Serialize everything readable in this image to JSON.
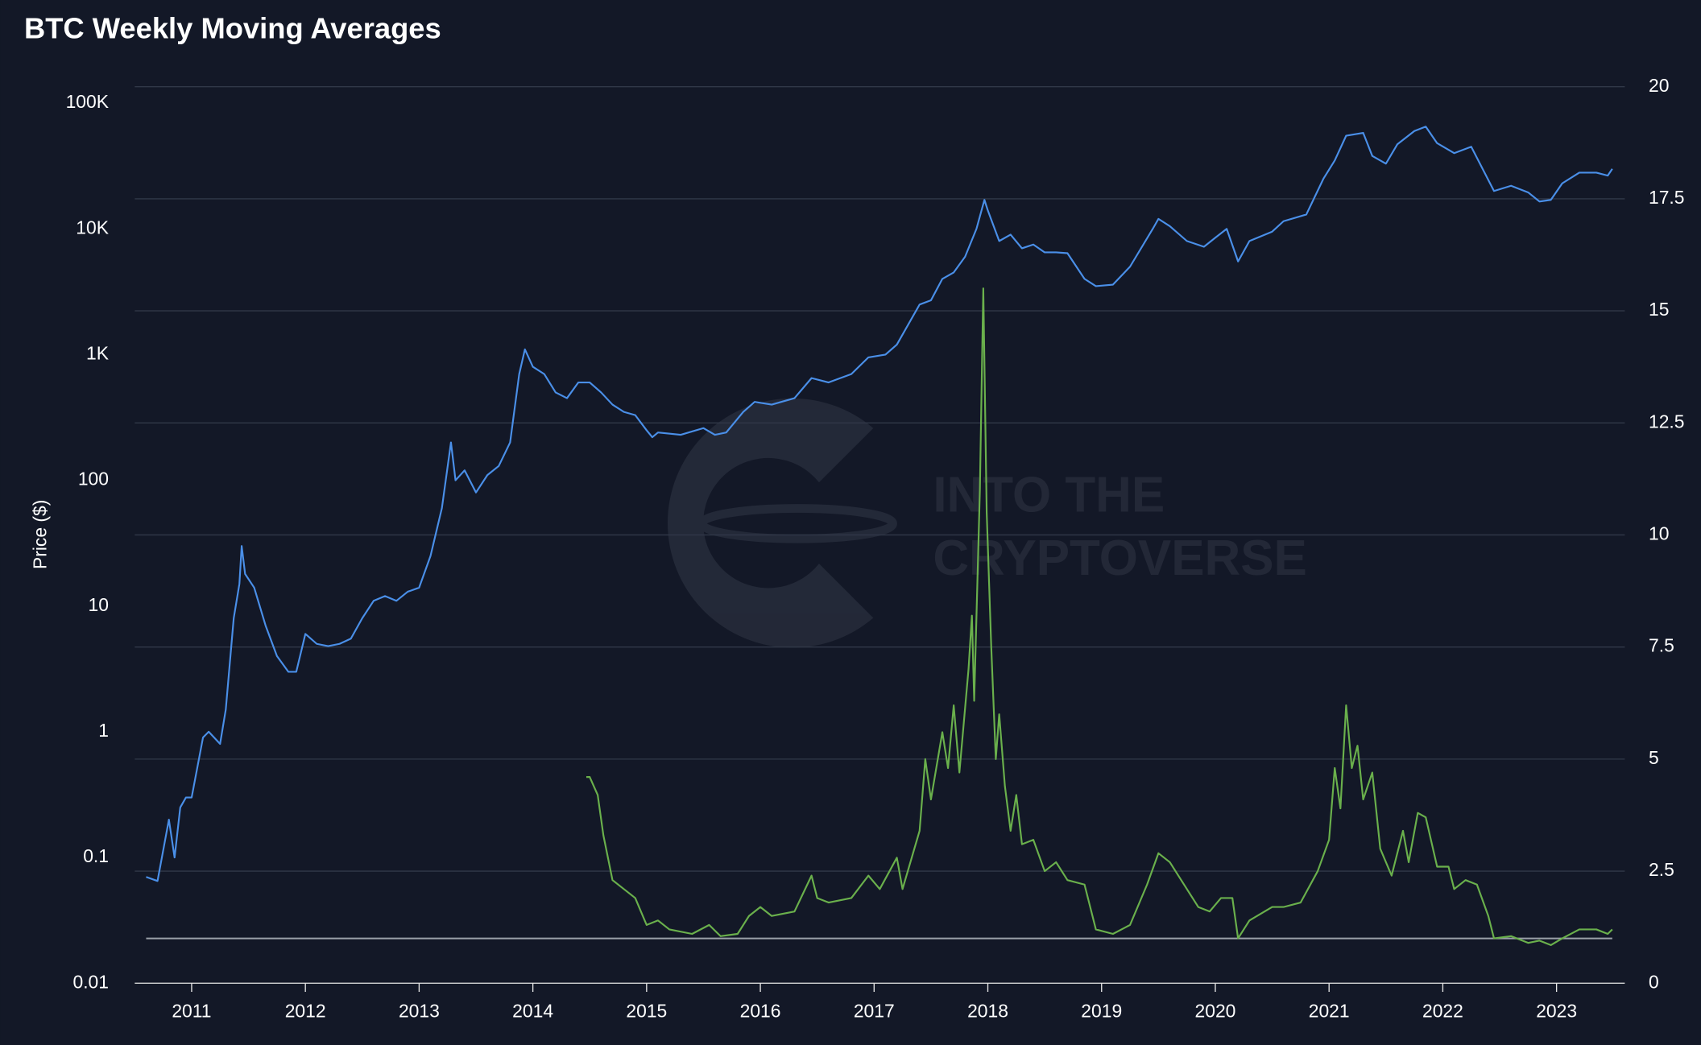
{
  "chart_data": {
    "type": "line",
    "title": "BTC Weekly Moving Averages",
    "ylabel": "Price ($)",
    "watermark": [
      "INTO THE",
      "CRYPTOVERSE"
    ],
    "ylog": true,
    "ylim": [
      0.01,
      135000
    ],
    "yticks": [
      0.01,
      0.1,
      1,
      10,
      100,
      {
        "value": 1000,
        "label": "1K"
      },
      {
        "value": 10000,
        "label": "10K"
      },
      {
        "value": 100000,
        "label": "100K"
      }
    ],
    "y2lim": [
      0,
      20
    ],
    "y2ticks": [
      0,
      2.5,
      5,
      7.5,
      10,
      12.5,
      15,
      17.5,
      20
    ],
    "grid_axis": "y2",
    "xlim": [
      2010.5,
      2023.6
    ],
    "xticks": [
      2011,
      2012,
      2013,
      2014,
      2015,
      2016,
      2017,
      2018,
      2019,
      2020,
      2021,
      2022,
      2023
    ],
    "hlines": [
      {
        "value": 1,
        "axis": "y2",
        "color": "#9aa0a8"
      }
    ],
    "series": [
      {
        "color": "#4a8fe8",
        "axis": "y",
        "x": [
          2010.6,
          2010.7,
          2010.8,
          2010.85,
          2010.9,
          2010.95,
          2011.0,
          2011.1,
          2011.15,
          2011.25,
          2011.3,
          2011.37,
          2011.42,
          2011.44,
          2011.47,
          2011.55,
          2011.65,
          2011.75,
          2011.85,
          2011.92,
          2012.0,
          2012.1,
          2012.2,
          2012.3,
          2012.4,
          2012.5,
          2012.6,
          2012.7,
          2012.8,
          2012.9,
          2013.0,
          2013.1,
          2013.2,
          2013.28,
          2013.32,
          2013.4,
          2013.5,
          2013.6,
          2013.7,
          2013.8,
          2013.88,
          2013.93,
          2014.0,
          2014.1,
          2014.2,
          2014.3,
          2014.4,
          2014.5,
          2014.6,
          2014.7,
          2014.8,
          2014.9,
          2015.0,
          2015.05,
          2015.1,
          2015.3,
          2015.5,
          2015.6,
          2015.7,
          2015.85,
          2015.95,
          2016.1,
          2016.3,
          2016.45,
          2016.6,
          2016.8,
          2016.95,
          2017.1,
          2017.2,
          2017.4,
          2017.5,
          2017.6,
          2017.7,
          2017.8,
          2017.9,
          2017.97,
          2018.0,
          2018.1,
          2018.2,
          2018.3,
          2018.4,
          2018.5,
          2018.6,
          2018.7,
          2018.85,
          2018.95,
          2019.1,
          2019.25,
          2019.45,
          2019.5,
          2019.6,
          2019.75,
          2019.9,
          2020.0,
          2020.1,
          2020.2,
          2020.3,
          2020.5,
          2020.6,
          2020.8,
          2020.95,
          2021.05,
          2021.15,
          2021.3,
          2021.38,
          2021.5,
          2021.6,
          2021.75,
          2021.85,
          2021.95,
          2022.1,
          2022.25,
          2022.35,
          2022.45,
          2022.6,
          2022.75,
          2022.85,
          2022.95,
          2023.05,
          2023.2,
          2023.35,
          2023.45,
          2023.49
        ],
        "values": [
          0.07,
          0.065,
          0.2,
          0.1,
          0.25,
          0.3,
          0.3,
          0.9,
          1.0,
          0.8,
          1.5,
          8,
          15,
          30,
          18,
          14,
          7,
          4,
          3,
          3,
          6,
          5,
          4.8,
          5,
          5.5,
          8,
          11,
          12,
          11,
          13,
          14,
          25,
          60,
          200,
          100,
          120,
          80,
          110,
          130,
          200,
          700,
          1100,
          800,
          700,
          500,
          450,
          600,
          600,
          500,
          400,
          350,
          330,
          250,
          220,
          240,
          230,
          260,
          230,
          240,
          350,
          420,
          400,
          450,
          650,
          600,
          700,
          950,
          1000,
          1200,
          2500,
          2700,
          4000,
          4500,
          6000,
          10000,
          17000,
          14000,
          8000,
          9000,
          7000,
          7500,
          6500,
          6500,
          6400,
          4000,
          3500,
          3600,
          5000,
          10000,
          12000,
          10500,
          8000,
          7200,
          8500,
          10000,
          5500,
          8000,
          9500,
          11500,
          13000,
          25000,
          35000,
          55000,
          58000,
          38000,
          33000,
          47000,
          60000,
          65000,
          48000,
          40000,
          45000,
          30000,
          20000,
          22000,
          19500,
          16500,
          17000,
          23000,
          28000,
          28000,
          26500,
          30000
        ]
      },
      {
        "color": "#6ab04c",
        "axis": "y2",
        "x": [
          2014.47,
          2014.5,
          2014.57,
          2014.62,
          2014.7,
          2014.8,
          2014.9,
          2015.0,
          2015.1,
          2015.2,
          2015.4,
          2015.55,
          2015.65,
          2015.8,
          2015.9,
          2016.0,
          2016.1,
          2016.3,
          2016.45,
          2016.5,
          2016.6,
          2016.8,
          2016.95,
          2017.05,
          2017.2,
          2017.25,
          2017.4,
          2017.45,
          2017.5,
          2017.6,
          2017.65,
          2017.7,
          2017.75,
          2017.83,
          2017.86,
          2017.88,
          2017.93,
          2017.96,
          2017.99,
          2018.03,
          2018.07,
          2018.1,
          2018.15,
          2018.2,
          2018.25,
          2018.3,
          2018.4,
          2018.5,
          2018.6,
          2018.7,
          2018.85,
          2018.95,
          2019.1,
          2019.25,
          2019.4,
          2019.5,
          2019.6,
          2019.7,
          2019.85,
          2019.95,
          2020.05,
          2020.15,
          2020.2,
          2020.3,
          2020.5,
          2020.6,
          2020.75,
          2020.9,
          2021.0,
          2021.05,
          2021.1,
          2021.15,
          2021.2,
          2021.25,
          2021.3,
          2021.38,
          2021.45,
          2021.55,
          2021.65,
          2021.7,
          2021.78,
          2021.85,
          2021.95,
          2022.05,
          2022.1,
          2022.2,
          2022.3,
          2022.4,
          2022.45,
          2022.6,
          2022.75,
          2022.85,
          2022.95,
          2023.05,
          2023.2,
          2023.35,
          2023.45,
          2023.49
        ],
        "values": [
          4.6,
          4.6,
          4.2,
          3.3,
          2.3,
          2.1,
          1.9,
          1.3,
          1.4,
          1.2,
          1.1,
          1.3,
          1.05,
          1.1,
          1.5,
          1.7,
          1.5,
          1.6,
          2.4,
          1.9,
          1.8,
          1.9,
          2.4,
          2.1,
          2.8,
          2.1,
          3.4,
          5.0,
          4.1,
          5.6,
          4.8,
          6.2,
          4.7,
          7.0,
          8.2,
          6.3,
          11.0,
          15.5,
          10.5,
          7.5,
          5.0,
          6.0,
          4.4,
          3.4,
          4.2,
          3.1,
          3.2,
          2.5,
          2.7,
          2.3,
          2.2,
          1.2,
          1.1,
          1.3,
          2.2,
          2.9,
          2.7,
          2.3,
          1.7,
          1.6,
          1.9,
          1.9,
          1.0,
          1.4,
          1.7,
          1.7,
          1.8,
          2.5,
          3.2,
          4.8,
          3.9,
          6.2,
          4.8,
          5.3,
          4.1,
          4.7,
          3.0,
          2.4,
          3.4,
          2.7,
          3.8,
          3.7,
          2.6,
          2.6,
          2.1,
          2.3,
          2.2,
          1.5,
          1.0,
          1.05,
          0.9,
          0.95,
          0.85,
          1.0,
          1.2,
          1.2,
          1.1,
          1.2
        ]
      }
    ]
  }
}
